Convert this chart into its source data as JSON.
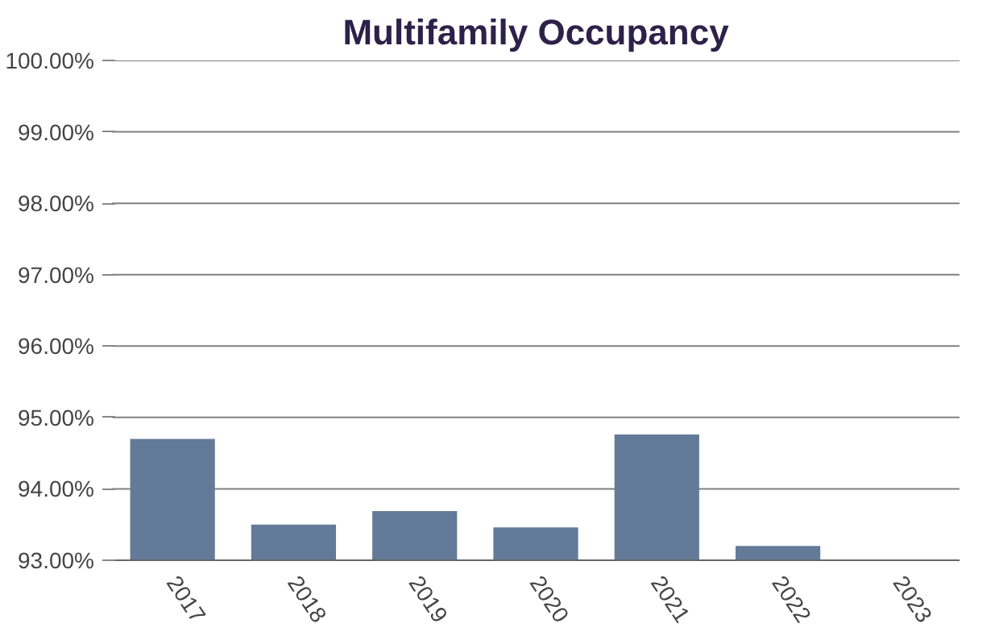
{
  "chart_data": {
    "type": "bar",
    "title": "Multifamily Occupancy",
    "categories": [
      "2017",
      "2018",
      "2019",
      "2020",
      "2021",
      "2022",
      "2023"
    ],
    "values": [
      94.7,
      93.5,
      93.69,
      93.46,
      94.76,
      93.2,
      93.01
    ],
    "color": "#647a99",
    "ylim": [
      93,
      100
    ],
    "yticks": [
      {
        "value": 93,
        "label": "93.00%"
      },
      {
        "value": 94,
        "label": "94.00%"
      },
      {
        "value": 95,
        "label": "95.00%"
      },
      {
        "value": 96,
        "label": "96.00%"
      },
      {
        "value": 97,
        "label": "97.00%"
      },
      {
        "value": 98,
        "label": "98.00%"
      },
      {
        "value": 99,
        "label": "99.00%"
      },
      {
        "value": 100,
        "label": "100.00%"
      }
    ],
    "grid": "y"
  }
}
